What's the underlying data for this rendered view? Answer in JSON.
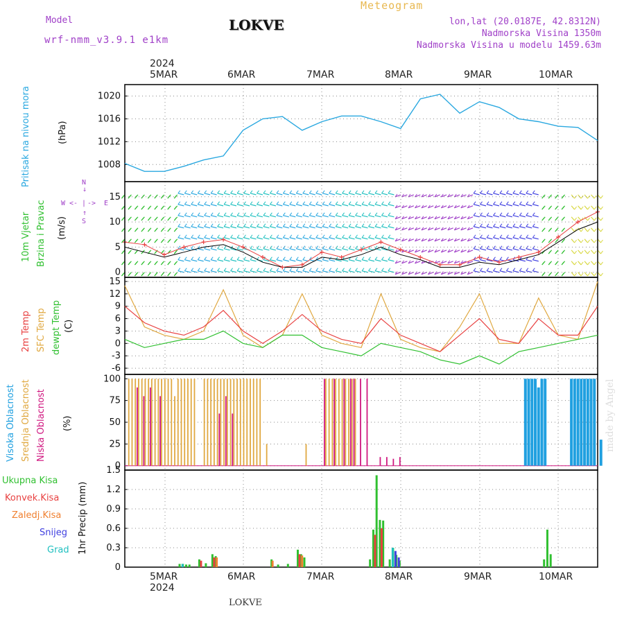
{
  "header": {
    "model_label": "Model",
    "model_name": "wrf-nmm_v3.9.1 e1km",
    "station": "LOKVE",
    "meteogram": "Meteogram",
    "lonlat": "lon,lat (20.0187E, 42.8312N)",
    "altitude": "Nadmorska Visina 1350m",
    "model_altitude": "Nadmorska Visina u modelu 1459.63m",
    "watermark": "made by Angel"
  },
  "axis": {
    "year": "2024",
    "days": [
      "5MAR",
      "6MAR",
      "7MAR",
      "8MAR",
      "9MAR",
      "10MAR"
    ],
    "footer_station": "LOKVE"
  },
  "panel_labels": {
    "pressure": [
      "Pritisak na nivou mora",
      "(hPa)"
    ],
    "wind": [
      "10m Vjetar",
      "Brzina i Pravac",
      "(m/s)"
    ],
    "compass": {
      "n": "N",
      "s": "S",
      "e": "E",
      "w": "W"
    },
    "temp": [
      "2m Temp",
      "SFC Temp",
      "dewpt Temp",
      "(C)"
    ],
    "cloud": [
      "Visoka Oblacnost",
      "Srednja Oblacnost",
      "Niska Oblacnost",
      "(%)"
    ],
    "precip": [
      "Ukupna Kisa",
      "Konvek.Kisa",
      "Zaledj.Kisa",
      "Snijeg",
      "Grad",
      "1hr Precip (mm)"
    ]
  },
  "colors": {
    "pressure": "#2aa8e0",
    "temp2m": "#e84040",
    "sfc": "#e0a840",
    "dewpt": "#30c030",
    "high_cloud": "#20a0e0",
    "mid_cloud": "#e0a840",
    "low_cloud": "#d01880",
    "total_precip": "#30c030",
    "conv_precip": "#e84040",
    "frz_precip": "#f08030",
    "snow": "#4040e0",
    "hail": "#20c0c0",
    "wind_purple": "#a040c8"
  },
  "chart_data": [
    {
      "type": "line",
      "name": "pressure",
      "ylabel": "(hPa)",
      "ylim": [
        1005,
        1022
      ],
      "yticks": [
        1008,
        1012,
        1016,
        1020
      ],
      "x_hours": [
        0,
        6,
        12,
        18,
        24,
        30,
        36,
        42,
        48,
        54,
        60,
        66,
        72,
        78,
        84,
        90,
        96,
        102,
        108,
        114,
        120,
        126,
        132,
        138,
        144
      ],
      "series": [
        {
          "values": [
            1008.2,
            1006.8,
            1006.8,
            1007.7,
            1008.8,
            1009.5,
            1014,
            1016,
            1016.4,
            1014,
            1015.5,
            1016.5,
            1016.5,
            1015.5,
            1014.3,
            1019.5,
            1020.3,
            1017,
            1019,
            1018,
            1016,
            1015.5,
            1014.7,
            1014.5,
            1012.2
          ]
        }
      ],
      "grid": true
    },
    {
      "type": "line",
      "name": "wind",
      "ylabel": "(m/s)",
      "ylim": [
        -1,
        18
      ],
      "yticks": [
        0,
        5,
        10,
        15
      ],
      "x_hours": [
        0,
        6,
        12,
        18,
        24,
        30,
        36,
        42,
        48,
        54,
        60,
        66,
        72,
        78,
        84,
        90,
        96,
        102,
        108,
        114,
        120,
        126,
        132,
        138,
        144
      ],
      "series": [
        {
          "values": [
            6,
            5.5,
            3.5,
            5,
            6,
            6.5,
            5,
            3,
            1,
            1.5,
            4,
            3,
            4.5,
            6,
            4.5,
            3,
            1.5,
            1.5,
            3,
            2,
            3,
            4,
            7,
            10,
            12
          ]
        },
        {
          "values": [
            5,
            4,
            3,
            4,
            5,
            5.5,
            4,
            2,
            1,
            1,
            3,
            2.5,
            3.5,
            5,
            3.5,
            2.5,
            1,
            1,
            2,
            1.5,
            2.5,
            3.5,
            6,
            8.5,
            10
          ]
        }
      ],
      "grid": true
    },
    {
      "type": "line",
      "name": "temperature",
      "ylabel": "(C)",
      "ylim": [
        -7.5,
        16
      ],
      "yticks": [
        -6,
        -3,
        0,
        3,
        6,
        9,
        12,
        15
      ],
      "x_hours": [
        0,
        6,
        12,
        18,
        24,
        30,
        36,
        42,
        48,
        54,
        60,
        66,
        72,
        78,
        84,
        90,
        96,
        102,
        108,
        114,
        120,
        126,
        132,
        138,
        144
      ],
      "series": [
        {
          "name": "2m Temp",
          "values": [
            9,
            5,
            3,
            2,
            4,
            8,
            3,
            0,
            3,
            7,
            3,
            1,
            0,
            6,
            2,
            0,
            -2,
            2,
            6,
            1,
            0,
            6,
            2,
            2,
            9
          ]
        },
        {
          "name": "SFC Temp",
          "values": [
            14,
            4,
            2,
            1,
            3,
            13,
            2,
            -1,
            2,
            12,
            2,
            0,
            -1,
            12,
            1,
            -1,
            -2,
            4,
            12,
            0,
            0,
            11,
            2,
            1,
            15
          ]
        },
        {
          "name": "dewpt Temp",
          "values": [
            1,
            -1,
            0,
            1,
            1,
            3,
            0,
            -1,
            2,
            2,
            -1,
            -2,
            -3,
            0,
            -1,
            -2,
            -4,
            -5,
            -3,
            -5,
            -2,
            -1,
            0,
            1,
            2
          ]
        }
      ],
      "grid": true
    },
    {
      "type": "bar",
      "name": "cloud",
      "ylabel": "(%)",
      "ylim": [
        0,
        100
      ],
      "yticks": [
        0,
        25,
        50,
        75,
        100
      ],
      "x_hours_start": 1,
      "series": [
        {
          "name": "Visoka Oblacnost",
          "values": [
            0,
            0,
            0,
            0,
            0,
            0,
            0,
            0,
            0,
            0,
            0,
            0,
            0,
            0,
            0,
            0,
            0,
            0,
            0,
            0,
            0,
            0,
            0,
            0,
            0,
            0,
            0,
            0,
            0,
            0,
            0,
            0,
            0,
            0,
            0,
            0,
            0,
            0,
            0,
            0,
            0,
            0,
            0,
            0,
            0,
            0,
            0,
            0,
            0,
            0,
            0,
            0,
            0,
            0,
            0,
            0,
            0,
            0,
            0,
            0,
            0,
            0,
            0,
            0,
            0,
            0,
            0,
            0,
            0,
            0,
            0,
            0,
            0,
            0,
            0,
            0,
            0,
            0,
            0,
            0,
            0,
            0,
            0,
            0,
            0,
            0,
            0,
            0,
            0,
            0,
            0,
            0,
            0,
            0,
            0,
            0,
            0,
            0,
            0,
            0,
            0,
            0,
            0,
            0,
            0,
            0,
            0,
            0,
            0,
            0,
            0,
            0,
            0,
            0,
            0,
            0,
            0,
            0,
            0,
            0,
            0,
            100,
            100,
            100,
            100,
            90,
            100,
            100,
            0,
            0,
            0,
            0,
            0,
            0,
            0,
            100,
            100,
            100,
            100,
            100,
            100,
            100,
            100,
            0,
            30
          ]
        },
        {
          "name": "Srednja Oblacnost",
          "values": [
            100,
            100,
            100,
            100,
            100,
            100,
            100,
            100,
            100,
            100,
            100,
            100,
            100,
            100,
            80,
            100,
            100,
            100,
            100,
            100,
            100,
            0,
            0,
            100,
            100,
            100,
            100,
            100,
            100,
            100,
            100,
            100,
            100,
            100,
            100,
            100,
            100,
            100,
            100,
            100,
            100,
            0,
            25,
            0,
            0,
            0,
            0,
            0,
            0,
            0,
            0,
            0,
            0,
            0,
            25,
            0,
            0,
            0,
            0,
            0,
            100,
            100,
            100,
            100,
            100,
            100,
            100,
            100,
            100,
            100,
            0,
            0,
            0,
            0,
            0,
            0,
            0,
            0,
            0,
            0,
            0,
            0,
            0,
            0,
            0,
            0,
            0,
            0,
            0,
            0,
            0,
            0,
            0,
            0,
            0,
            0,
            0,
            0,
            0,
            0,
            0,
            0,
            0,
            0,
            0,
            0,
            0,
            0,
            0,
            0,
            0,
            0,
            0,
            0,
            0,
            0,
            0,
            0,
            0,
            0,
            0,
            0,
            0,
            0,
            0,
            0,
            0,
            0,
            0,
            0,
            0,
            0,
            0,
            0,
            0,
            0,
            0,
            0,
            0,
            0,
            0,
            0,
            0,
            0
          ]
        },
        {
          "name": "Niska Oblacnost",
          "values": [
            0,
            0,
            0,
            90,
            0,
            80,
            0,
            90,
            0,
            0,
            80,
            0,
            0,
            0,
            0,
            0,
            0,
            0,
            0,
            0,
            0,
            0,
            0,
            0,
            0,
            0,
            0,
            0,
            60,
            0,
            80,
            0,
            60,
            0,
            0,
            0,
            0,
            0,
            0,
            0,
            0,
            0,
            0,
            0,
            0,
            0,
            0,
            0,
            0,
            0,
            0,
            0,
            0,
            0,
            0,
            0,
            0,
            0,
            0,
            0,
            100,
            0,
            0,
            100,
            0,
            0,
            100,
            0,
            100,
            100,
            0,
            100,
            0,
            100,
            0,
            0,
            0,
            10,
            0,
            10,
            0,
            8,
            0,
            10,
            0,
            0,
            0,
            0,
            0,
            0,
            0,
            0,
            0,
            0,
            0,
            0,
            0,
            0,
            0,
            0,
            0,
            0,
            0,
            0,
            0,
            0,
            0,
            0,
            0,
            0,
            0,
            0,
            0,
            0,
            0,
            0,
            0,
            0,
            0,
            0,
            0,
            0,
            0,
            0,
            0,
            0,
            0,
            0,
            0,
            0,
            0,
            0,
            0,
            0,
            0,
            0,
            0,
            0,
            0,
            0,
            0,
            0,
            0,
            0
          ]
        }
      ],
      "grid": true
    },
    {
      "type": "bar",
      "name": "precip",
      "ylabel": "1hr Precip (mm)",
      "ylim": [
        0,
        1.5
      ],
      "yticks": [
        0,
        0.3,
        0.6,
        0.9,
        1.2,
        1.5
      ],
      "series": [
        {
          "name": "Ukupna Kisa",
          "points": [
            [
              17,
              0.05
            ],
            [
              18,
              0.05
            ],
            [
              19,
              0.04
            ],
            [
              20,
              0.04
            ],
            [
              23,
              0.12
            ],
            [
              25,
              0.06
            ],
            [
              27,
              0.2
            ],
            [
              28,
              0.17
            ],
            [
              45,
              0.12
            ],
            [
              47,
              0.04
            ],
            [
              50,
              0.05
            ],
            [
              53,
              0.27
            ],
            [
              54,
              0.2
            ],
            [
              55,
              0.15
            ],
            [
              75,
              0.12
            ],
            [
              76,
              0.58
            ],
            [
              77,
              1.42
            ],
            [
              78,
              0.73
            ],
            [
              79,
              0.72
            ],
            [
              81,
              0.12
            ],
            [
              82,
              0.3
            ],
            [
              83,
              0.19
            ],
            [
              84,
              0.1
            ],
            [
              128,
              0.12
            ],
            [
              129,
              0.58
            ],
            [
              130,
              0.2
            ]
          ]
        },
        {
          "name": "Konvek.Kisa",
          "points": [
            [
              23,
              0.1
            ],
            [
              27,
              0.15
            ],
            [
              53,
              0.2
            ],
            [
              76,
              0.5
            ],
            [
              78,
              0.6
            ]
          ]
        },
        {
          "name": "Zaledj.Kisa",
          "points": [
            [
              28,
              0.15
            ],
            [
              45,
              0.1
            ],
            [
              54,
              0.18
            ]
          ]
        },
        {
          "name": "Snijeg",
          "points": [
            [
              82,
              0.25
            ],
            [
              83,
              0.15
            ]
          ]
        },
        {
          "name": "Grad",
          "points": [
            [
              18,
              0.05
            ],
            [
              82,
              0.3
            ]
          ]
        }
      ],
      "grid": true
    }
  ]
}
